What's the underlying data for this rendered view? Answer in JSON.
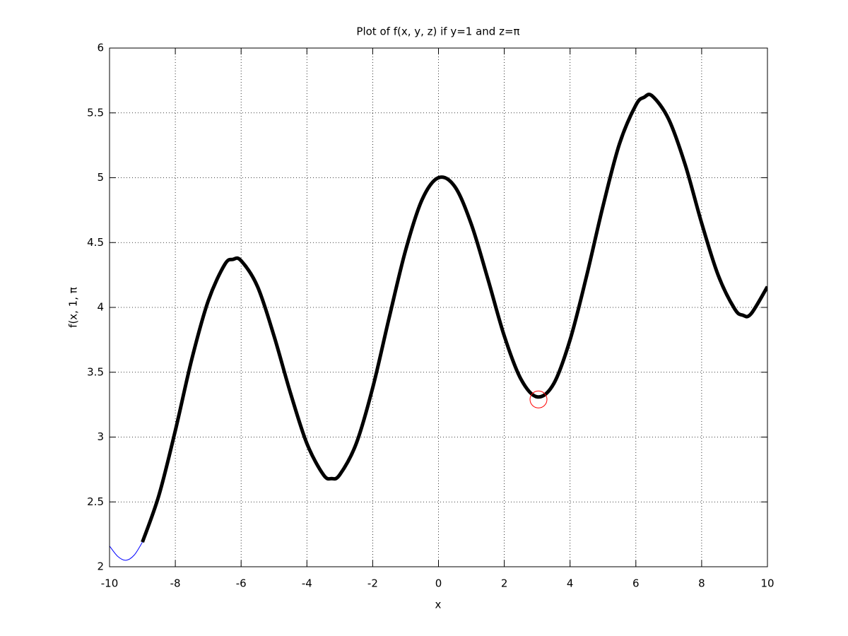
{
  "chart_data": {
    "type": "line",
    "title": "Plot of f(x, y, z) if y=1 and z=π",
    "xlabel": "x",
    "ylabel": "f(x, 1, π",
    "xlim": [
      -10,
      10
    ],
    "ylim": [
      2,
      6
    ],
    "xticks": [
      -10,
      -8,
      -6,
      -4,
      -2,
      0,
      2,
      4,
      6,
      8,
      10
    ],
    "yticks": [
      2,
      2.5,
      3,
      3.5,
      4,
      4.5,
      5,
      5.5,
      6
    ],
    "grid": true,
    "series": [
      {
        "color": "#0000ff",
        "line_width": 1,
        "x": [
          -10,
          -9.75,
          -9.5,
          -9.25,
          -9
        ],
        "values": [
          2.16,
          2.08,
          2.05,
          2.09,
          2.19
        ]
      },
      {
        "color": "#000000",
        "line_width": 5,
        "x": [
          -9,
          -8.5,
          -8,
          -7.5,
          -7,
          -6.5,
          -6.25,
          -6,
          -5.5,
          -5,
          -4.5,
          -4,
          -3.5,
          -3.25,
          -3,
          -2.5,
          -2,
          -1.5,
          -1,
          -0.5,
          0,
          0.5,
          1,
          1.5,
          2,
          2.5,
          3,
          3.5,
          4,
          4.5,
          5,
          5.5,
          6,
          6.25,
          6.5,
          7,
          7.5,
          8,
          8.5,
          9,
          9.25,
          9.5,
          10
        ],
        "values": [
          2.19,
          2.55,
          3.05,
          3.6,
          4.05,
          4.33,
          4.37,
          4.36,
          4.16,
          3.78,
          3.34,
          2.95,
          2.71,
          2.68,
          2.71,
          2.95,
          3.38,
          3.92,
          4.44,
          4.83,
          5,
          4.93,
          4.64,
          4.22,
          3.78,
          3.45,
          3.31,
          3.41,
          3.75,
          4.24,
          4.78,
          5.26,
          5.56,
          5.62,
          5.63,
          5.45,
          5.1,
          4.65,
          4.25,
          3.99,
          3.94,
          3.95,
          4.16
        ]
      },
      {
        "color": "#ff0000",
        "marker": "circle",
        "line_width": 1,
        "x": [
          3.04
        ],
        "values": [
          3.29
        ]
      }
    ]
  }
}
